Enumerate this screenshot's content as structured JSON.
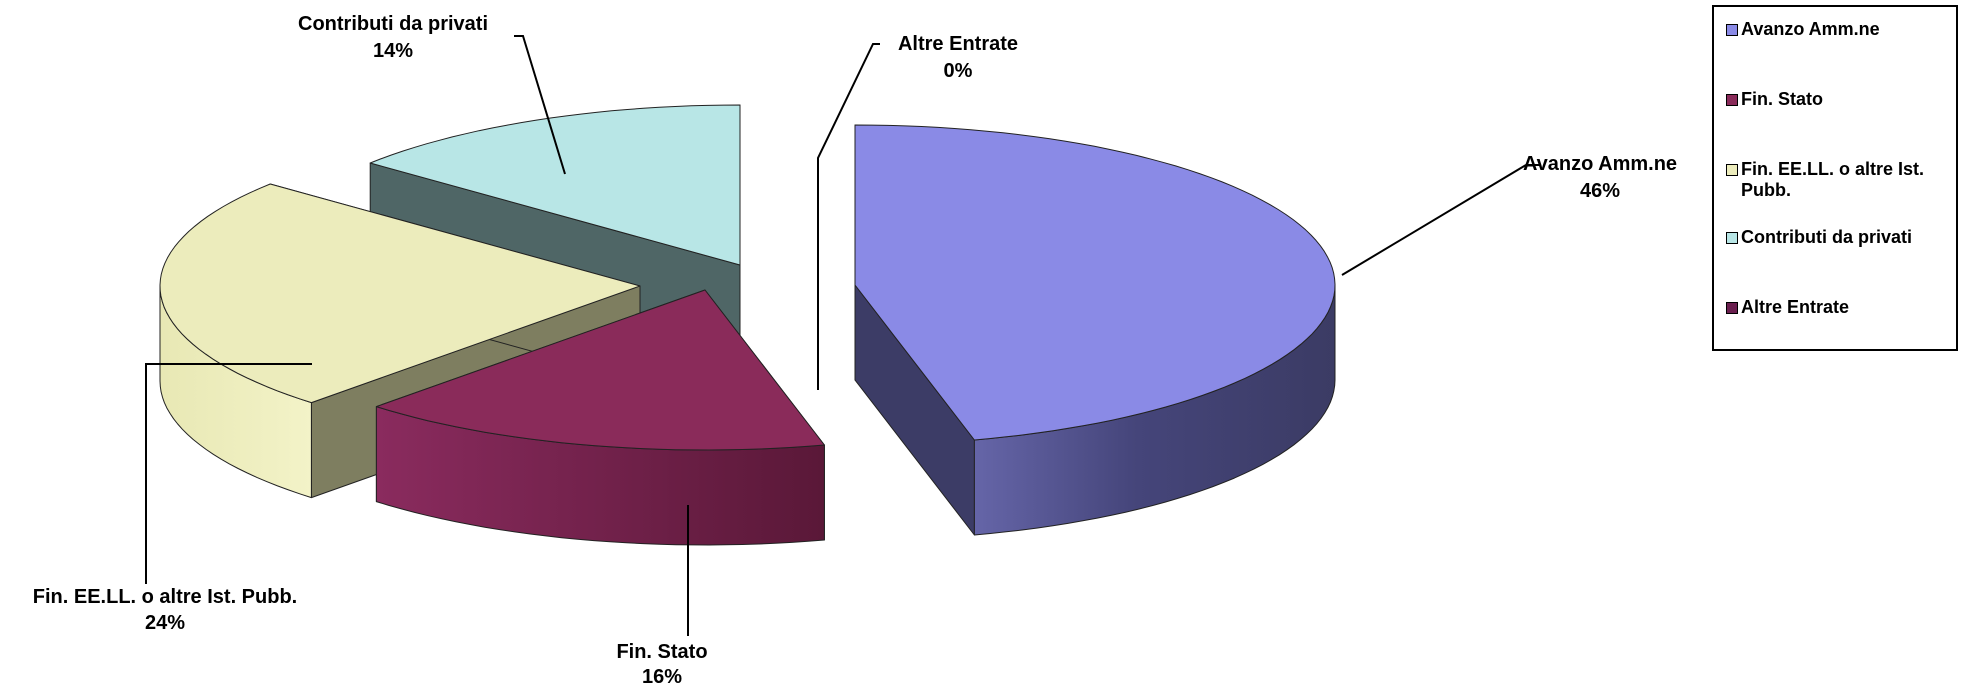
{
  "chart_data": {
    "type": "pie",
    "style": "3d-exploded",
    "slices": [
      {
        "label": "Avanzo Amm.ne",
        "value": 46,
        "value_label": "46%",
        "color": "#8a8ae6"
      },
      {
        "label": "Fin. Stato",
        "value": 16,
        "value_label": "16%",
        "color": "#8a2b5a"
      },
      {
        "label": "Fin. EE.LL. o altre Ist. Pubb.",
        "value": 24,
        "value_label": "24%",
        "color": "#ececbc"
      },
      {
        "label": "Contributi da privati",
        "value": 14,
        "value_label": "14%",
        "color": "#b8e6e6"
      },
      {
        "label": "Altre Entrate",
        "value": 0,
        "value_label": "0%",
        "color": "#6b1f4f"
      }
    ],
    "legend_position": "right"
  },
  "legend": {
    "items": [
      {
        "label": "Avanzo Amm.ne",
        "color": "#8a8ae6"
      },
      {
        "label": "Fin. Stato",
        "color": "#8a2b5a"
      },
      {
        "label": "Fin. EE.LL. o altre Ist. Pubb.",
        "color": "#ececbc"
      },
      {
        "label": "Contributi da privati",
        "color": "#b8e6e6"
      },
      {
        "label": "Altre Entrate",
        "color": "#6b1f4f"
      }
    ]
  }
}
